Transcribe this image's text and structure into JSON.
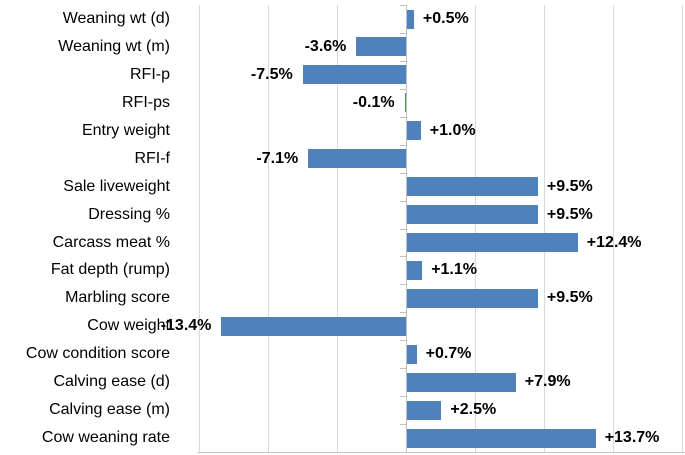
{
  "chart_data": {
    "type": "bar",
    "orientation": "horizontal",
    "title": "",
    "xlabel": "",
    "ylabel": "",
    "xlim": [
      -15,
      20
    ],
    "gridline_step": 5,
    "grid": true,
    "legend": false,
    "bar_color": "#4F81BD",
    "gridline_color": "#D9D9D9",
    "axis_color": "#BFBFBF",
    "categories": [
      "Weaning wt (d)",
      "Weaning wt (m)",
      "RFI-p",
      "RFI-ps",
      "Entry weight",
      "RFI-f",
      "Sale liveweight",
      "Dressing %",
      "Carcass meat %",
      "Fat depth (rump)",
      "Marbling score",
      "Cow weight",
      "Cow condition score",
      "Calving ease (d)",
      "Calving ease (m)",
      "Cow weaning rate"
    ],
    "values": [
      0.5,
      -3.6,
      -7.5,
      -0.1,
      1.0,
      -7.1,
      9.5,
      9.5,
      12.4,
      1.1,
      9.5,
      -13.4,
      0.7,
      7.9,
      2.5,
      13.7
    ],
    "data_labels": [
      "+0.5%",
      "-3.6%",
      "-7.5%",
      "-0.1%",
      "+1.0%",
      "-7.1%",
      "+9.5%",
      "+9.5%",
      "+12.4%",
      "+1.1%",
      "+9.5%",
      "-13.4%",
      "+0.7%",
      "+7.9%",
      "+2.5%",
      "+13.7%"
    ]
  }
}
